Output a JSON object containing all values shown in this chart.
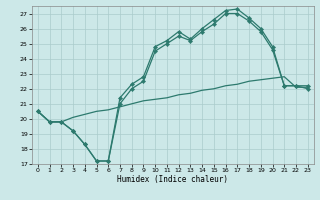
{
  "title": "",
  "xlabel": "Humidex (Indice chaleur)",
  "bg_color": "#cce8e8",
  "grid_color": "#aacccc",
  "line_color": "#2d7a6e",
  "ylim": [
    17,
    27.5
  ],
  "xlim": [
    -0.5,
    23.5
  ],
  "yticks": [
    17,
    18,
    19,
    20,
    21,
    22,
    23,
    24,
    25,
    26,
    27
  ],
  "xticks": [
    0,
    1,
    2,
    3,
    4,
    5,
    6,
    7,
    8,
    9,
    10,
    11,
    12,
    13,
    14,
    15,
    16,
    17,
    18,
    19,
    20,
    21,
    22,
    23
  ],
  "line1_x": [
    0,
    1,
    2,
    3,
    4,
    5,
    6,
    7,
    8,
    9,
    10,
    11,
    12,
    13,
    14,
    15,
    16,
    17,
    18,
    19,
    20,
    21,
    22,
    23
  ],
  "line1_y": [
    20.5,
    19.8,
    19.8,
    19.2,
    18.3,
    17.2,
    17.2,
    21.4,
    22.3,
    22.8,
    24.8,
    25.2,
    25.8,
    25.3,
    26.0,
    26.6,
    27.2,
    27.3,
    26.7,
    26.0,
    24.8,
    22.2,
    22.2,
    22.2
  ],
  "line2_x": [
    0,
    1,
    2,
    3,
    4,
    5,
    6,
    7,
    8,
    9,
    10,
    11,
    12,
    13,
    14,
    15,
    16,
    17,
    18,
    19,
    20,
    21,
    22,
    23
  ],
  "line2_y": [
    20.5,
    19.8,
    19.8,
    19.2,
    18.3,
    17.2,
    17.2,
    21.0,
    22.0,
    22.5,
    24.5,
    25.0,
    25.5,
    25.2,
    25.8,
    26.3,
    27.0,
    27.0,
    26.5,
    25.8,
    24.6,
    22.2,
    22.2,
    22.0
  ],
  "line3_x": [
    0,
    1,
    2,
    3,
    4,
    5,
    6,
    7,
    8,
    9,
    10,
    11,
    12,
    13,
    14,
    15,
    16,
    17,
    18,
    19,
    20,
    21,
    22,
    23
  ],
  "line3_y": [
    20.5,
    19.8,
    19.8,
    20.1,
    20.3,
    20.5,
    20.6,
    20.8,
    21.0,
    21.2,
    21.3,
    21.4,
    21.6,
    21.7,
    21.9,
    22.0,
    22.2,
    22.3,
    22.5,
    22.6,
    22.7,
    22.8,
    22.1,
    22.1
  ]
}
